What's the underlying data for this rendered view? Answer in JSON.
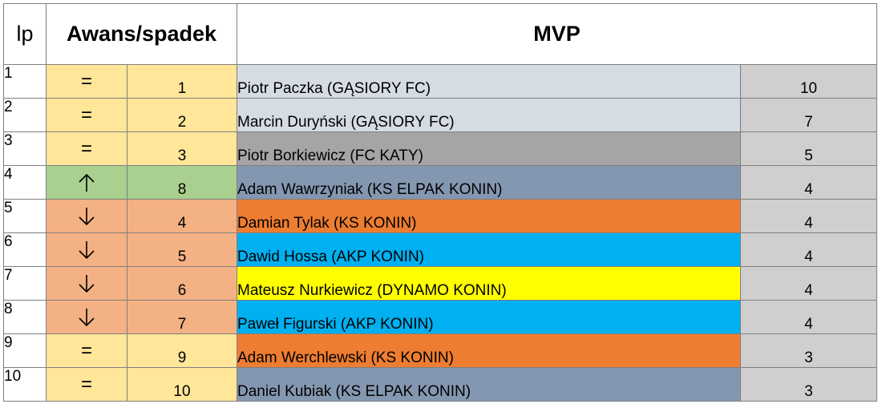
{
  "header": {
    "lp": "lp",
    "change": "Awans/spadek",
    "mvp": "MVP"
  },
  "colors": {
    "equal": "#ffe699",
    "up": "#a9d08e",
    "down": "#f4b183"
  },
  "rows": [
    {
      "lp": "1",
      "change": "equal",
      "symbol": "=",
      "prev": "1",
      "name": "Piotr Paczka (GĄSIORY FC)",
      "votes": "10",
      "name_bg": "#d6dce4"
    },
    {
      "lp": "2",
      "change": "equal",
      "symbol": "=",
      "prev": "2",
      "name": "Marcin Duryński (GĄSIORY FC)",
      "votes": "7",
      "name_bg": "#d6dce4"
    },
    {
      "lp": "3",
      "change": "equal",
      "symbol": "=",
      "prev": "3",
      "name": "Piotr Borkiewicz (FC KATY)",
      "votes": "5",
      "name_bg": "#a5a5a5"
    },
    {
      "lp": "4",
      "change": "up",
      "symbol": "↑",
      "prev": "8",
      "name": "Adam Wawrzyniak (KS ELPAK KONIN)",
      "votes": "4",
      "name_bg": "#8497b0"
    },
    {
      "lp": "5",
      "change": "down",
      "symbol": "↓",
      "prev": "4",
      "name": "Damian Tylak (KS KONIN)",
      "votes": "4",
      "name_bg": "#ed7d31"
    },
    {
      "lp": "6",
      "change": "down",
      "symbol": "↓",
      "prev": "5",
      "name": "Dawid Hossa (AKP KONIN)",
      "votes": "4",
      "name_bg": "#00b0f0"
    },
    {
      "lp": "7",
      "change": "down",
      "symbol": "↓",
      "prev": "6",
      "name": "Mateusz Nurkiewicz (DYNAMO KONIN)",
      "votes": "4",
      "name_bg": "#ffff00"
    },
    {
      "lp": "8",
      "change": "down",
      "symbol": "↓",
      "prev": "7",
      "name": "Paweł Figurski (AKP KONIN)",
      "votes": "4",
      "name_bg": "#00b0f0"
    },
    {
      "lp": "9",
      "change": "equal",
      "symbol": "=",
      "prev": "9",
      "name": "Adam Werchlewski (KS KONIN)",
      "votes": "3",
      "name_bg": "#ed7d31"
    },
    {
      "lp": "10",
      "change": "equal",
      "symbol": "=",
      "prev": "10",
      "name": "Daniel Kubiak (KS ELPAK KONIN)",
      "votes": "3",
      "name_bg": "#8497b0"
    }
  ]
}
